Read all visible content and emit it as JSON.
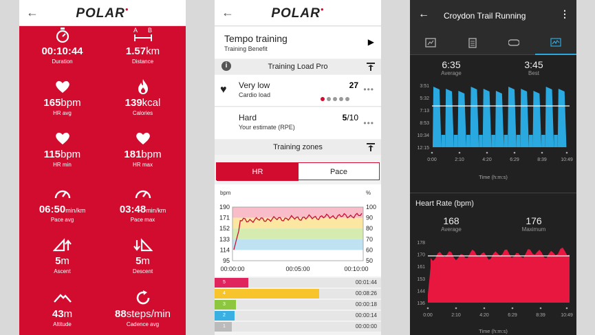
{
  "p1": {
    "brand": "POLAR",
    "metrics": [
      {
        "icon": "stopwatch-icon",
        "value": "00:10:44",
        "unit": "",
        "small": "",
        "label": "Duration"
      },
      {
        "icon": "distance-icon",
        "value": "1.57",
        "unit": "km",
        "small": "",
        "label": "Distance"
      },
      {
        "icon": "heart-icon",
        "value": "165",
        "unit": "bpm",
        "small": "",
        "label": "HR avg"
      },
      {
        "icon": "flame-icon",
        "value": "139",
        "unit": "kcal",
        "small": "",
        "label": "Calories"
      },
      {
        "icon": "heart-icon",
        "value": "115",
        "unit": "bpm",
        "small": "",
        "label": "HR min"
      },
      {
        "icon": "heart-icon",
        "value": "181",
        "unit": "bpm",
        "small": "",
        "label": "HR max"
      },
      {
        "icon": "gauge-icon",
        "value": "06:50",
        "unit": "",
        "small": "min/km",
        "label": "Pace avg"
      },
      {
        "icon": "gauge-icon",
        "value": "03:48",
        "unit": "",
        "small": "min/km",
        "label": "Pace max"
      },
      {
        "icon": "ascent-icon",
        "value": "5",
        "unit": "m",
        "small": "",
        "label": "Ascent"
      },
      {
        "icon": "descent-icon",
        "value": "5",
        "unit": "m",
        "small": "",
        "label": "Descent"
      },
      {
        "icon": "mountain-icon",
        "value": "43",
        "unit": "m",
        "small": "",
        "label": "Altitude"
      },
      {
        "icon": "cadence-icon",
        "value": "88",
        "unit": "steps/min",
        "small": "",
        "label": "Cadence avg"
      }
    ]
  },
  "p2": {
    "brand": "POLAR",
    "session_title": "Tempo training",
    "session_sub": "Training Benefit",
    "load_title": "Training Load Pro",
    "cardio_title": "Very low",
    "cardio_sub": "Cardio load",
    "cardio_value": "27",
    "rpe_title": "Hard",
    "rpe_sub": "Your estimate (RPE)",
    "rpe_value": "5",
    "rpe_max": "/10",
    "zones_title": "Training zones",
    "tab_hr": "HR",
    "tab_pace": "Pace",
    "chart": {
      "y_unit_left": "bpm",
      "y_unit_right": "%",
      "left_ticks": [
        "190",
        "171",
        "152",
        "133",
        "114",
        "95"
      ],
      "right_ticks": [
        "100",
        "90",
        "80",
        "70",
        "60",
        "50"
      ],
      "x_ticks": [
        "00:00:00",
        "00:05:00",
        "00:10:00"
      ]
    },
    "zones": [
      {
        "num": "5",
        "time": "00:01:44",
        "color": "#e0245e",
        "fraction": 0.25
      },
      {
        "num": "4",
        "time": "00:08:26",
        "color": "#f7c52b",
        "fraction": 0.78
      },
      {
        "num": "3",
        "time": "00:00:18",
        "color": "#8dc63f",
        "fraction": 0.16
      },
      {
        "num": "2",
        "time": "00:00:14",
        "color": "#3ab0e2",
        "fraction": 0.15
      },
      {
        "num": "1",
        "time": "00:00:00",
        "color": "#bbbbbb",
        "fraction": 0.13
      }
    ]
  },
  "p3": {
    "title": "Croydon Trail Running",
    "pace": {
      "avg": "6:35",
      "avg_label": "Average",
      "best": "3:45",
      "best_label": "Best",
      "y_ticks": [
        "3:51",
        "5:32",
        "7:13",
        "8:53",
        "10:34",
        "12:15"
      ],
      "x_ticks": [
        "0:00",
        "2:10",
        "4:20",
        "6:29",
        "8:39",
        "10:49"
      ],
      "x_label": "Time (h:m:s)"
    },
    "hr": {
      "title": "Heart Rate (bpm)",
      "avg": "168",
      "avg_label": "Average",
      "max": "176",
      "max_label": "Maximum",
      "y_ticks": [
        "178",
        "170",
        "161",
        "153",
        "144",
        "136"
      ],
      "x_ticks": [
        "0:00",
        "2:10",
        "4:20",
        "6:29",
        "8:39",
        "10:49"
      ],
      "x_label": "Time (h:m:s)"
    }
  },
  "colors": {
    "polar_red": "#d10c2f",
    "garmin_blue": "#2aa9e0",
    "garmin_red": "#e8173f"
  }
}
